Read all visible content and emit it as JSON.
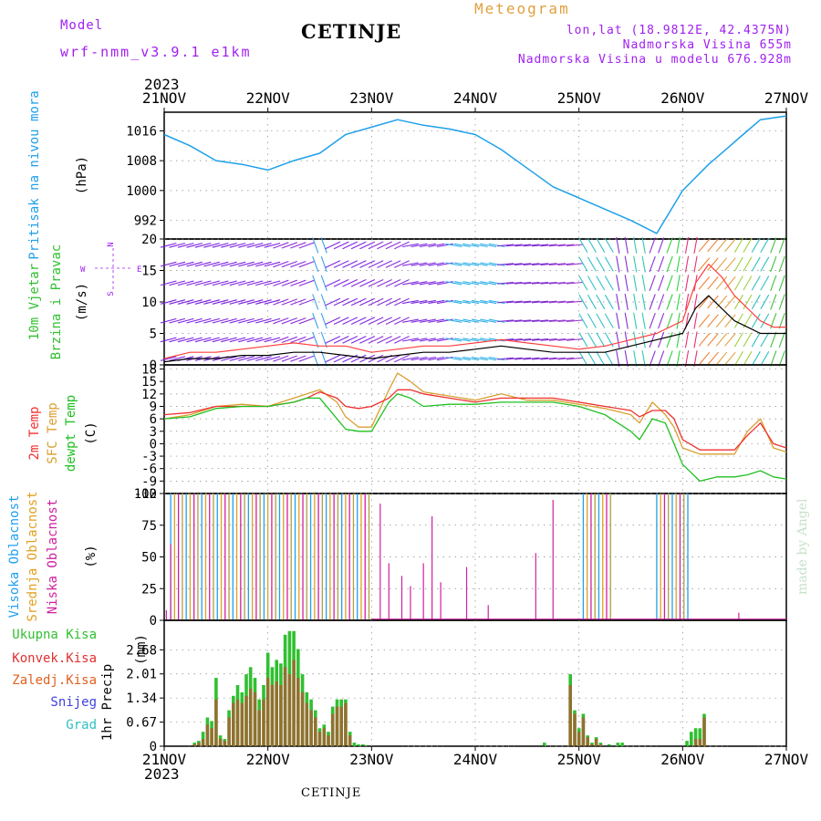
{
  "header": {
    "title": "CETINJE",
    "model_label": "Model",
    "model_name": "wrf-nmm_v3.9.1  e1km",
    "meteogram": "Meteogram",
    "lonlat": "lon,lat (18.9812E, 42.4375N)",
    "altitude": "Nadmorska Visina 655m",
    "model_altitude": "Nadmorska Visina u modelu 676.928m",
    "made_by": "made by Angel",
    "footer": "CETINJE"
  },
  "time_axis": {
    "year": "2023",
    "labels": [
      "21NOV",
      "22NOV",
      "23NOV",
      "24NOV",
      "25NOV",
      "26NOV",
      "27NOV"
    ],
    "range_hours": [
      0,
      144
    ]
  },
  "colors": {
    "pressure": "#1ea0ea",
    "temp2m": "#f03030",
    "sfc_temp": "#d8a030",
    "dewpoint": "#20c020",
    "wind_speed": "#000000",
    "gust": "#ff4040",
    "high_cloud": "#20a0f0",
    "mid_cloud": "#e0a020",
    "low_cloud": "#d020a0",
    "total_precip": "#30c030",
    "convective": "#e03030",
    "frozen": "#e06020",
    "snow": "#4040e0",
    "graupel": "#30c0c0",
    "wind_label": "#30c030",
    "axis_label": "#000000"
  },
  "chart_data": [
    {
      "type": "line",
      "id": "pressure",
      "ylabel_title": "Pritisak na nivou mora",
      "ylabel_unit": "(hPa)",
      "ylim": [
        987,
        1021
      ],
      "yticks": [
        "1016",
        "1008",
        "1000",
        "992"
      ],
      "ytick_values": [
        1016,
        1008,
        1000,
        992
      ],
      "series": [
        {
          "x": [
            0,
            6,
            12,
            18,
            24,
            30,
            36,
            42,
            48,
            54,
            60,
            66,
            72,
            78,
            84,
            90,
            96,
            102,
            108,
            114,
            120,
            126,
            130,
            134,
            138,
            144
          ],
          "values": [
            1015,
            1012,
            1008,
            1007,
            1005.5,
            1008,
            1010,
            1015,
            1017,
            1019,
            1017.5,
            1016.5,
            1015,
            1011,
            1006,
            1001,
            998,
            995,
            992,
            988.5,
            1000,
            1007,
            1011,
            1015,
            1019,
            1020
          ]
        }
      ]
    },
    {
      "type": "wind",
      "id": "wind",
      "ylabel_title_1": "10m Vjetar",
      "ylabel_title_2": "Brzina i Pravac",
      "ylabel_unit": "(m/s)",
      "compass": "N",
      "compass_w": "W",
      "compass_e": "E",
      "compass_s": "S",
      "ylim": [
        0,
        20
      ],
      "yticks": [
        "20",
        "15",
        "10",
        "5",
        "0"
      ],
      "ytick_values": [
        20,
        15,
        10,
        5,
        0
      ],
      "speed": {
        "x": [
          0,
          6,
          12,
          18,
          24,
          30,
          36,
          42,
          48,
          54,
          60,
          66,
          72,
          78,
          84,
          90,
          96,
          102,
          108,
          114,
          120,
          123,
          126,
          129,
          132,
          135,
          138,
          141,
          144
        ],
        "values": [
          0.5,
          1,
          1,
          1.5,
          1.5,
          2,
          2,
          1.5,
          1,
          1.5,
          2,
          2,
          2.5,
          3,
          2.5,
          2,
          2,
          2,
          3,
          4,
          5,
          9,
          11,
          9,
          7,
          6,
          5,
          5,
          5
        ]
      },
      "gust": {
        "x": [
          0,
          6,
          12,
          18,
          24,
          30,
          36,
          42,
          48,
          54,
          60,
          66,
          72,
          78,
          84,
          90,
          96,
          102,
          108,
          114,
          120,
          123,
          126,
          129,
          132,
          135,
          138,
          141,
          144
        ],
        "values": [
          1,
          2,
          2,
          2.5,
          3,
          3.5,
          3,
          3,
          2,
          2.5,
          3,
          3,
          3.5,
          4,
          3.5,
          3,
          2.5,
          3,
          4,
          5,
          7,
          13,
          16,
          14,
          11,
          9,
          7,
          6,
          6
        ]
      }
    },
    {
      "type": "line",
      "id": "temperature",
      "ylabel_title_1": "2m Temp",
      "ylabel_title_2": "SFC Temp",
      "ylabel_title_3": "dewpt Temp",
      "ylabel_unit": "(C)",
      "ylim": [
        -12,
        19
      ],
      "yticks": [
        "18",
        "15",
        "12",
        "9",
        "6",
        "3",
        "0",
        "-3",
        "-6",
        "-9",
        "-12"
      ],
      "ytick_values": [
        18,
        15,
        12,
        9,
        6,
        3,
        0,
        -3,
        -6,
        -9,
        -12
      ],
      "series": [
        {
          "name": "2m Temp",
          "x": [
            0,
            6,
            12,
            18,
            24,
            30,
            33,
            36,
            40,
            42,
            45,
            48,
            52,
            54,
            57,
            60,
            66,
            72,
            78,
            84,
            90,
            96,
            102,
            108,
            110,
            113,
            116,
            118,
            120,
            124,
            128,
            132,
            135,
            138,
            141,
            144
          ],
          "values": [
            7,
            7.5,
            9,
            9,
            9,
            10,
            11,
            12.5,
            11,
            9,
            8.5,
            9,
            11,
            13,
            13,
            12,
            11,
            10,
            11,
            11,
            11,
            10,
            9,
            8,
            6.5,
            8,
            8,
            6,
            1,
            -1.5,
            -1.5,
            -1.5,
            2,
            5,
            0,
            -1
          ]
        },
        {
          "name": "SFC Temp",
          "x": [
            0,
            6,
            12,
            18,
            24,
            30,
            33,
            36,
            40,
            42,
            45,
            48,
            52,
            54,
            57,
            60,
            66,
            72,
            78,
            84,
            90,
            96,
            102,
            108,
            110,
            113,
            116,
            118,
            120,
            124,
            128,
            132,
            135,
            138,
            141,
            144
          ],
          "values": [
            6,
            7,
            9,
            9.5,
            9,
            11,
            12,
            13,
            10,
            6.5,
            4,
            4,
            13,
            17,
            15,
            12.5,
            11.5,
            10.5,
            12,
            10.5,
            10.5,
            9.5,
            8.5,
            7,
            5,
            10,
            7,
            4,
            -1,
            -2.5,
            -2.5,
            -2.5,
            3,
            6,
            -1,
            -2
          ]
        },
        {
          "name": "dewpt Temp",
          "x": [
            0,
            6,
            12,
            18,
            24,
            30,
            33,
            36,
            40,
            42,
            45,
            48,
            52,
            54,
            57,
            60,
            66,
            72,
            78,
            84,
            90,
            96,
            102,
            108,
            110,
            113,
            116,
            118,
            120,
            124,
            128,
            132,
            135,
            138,
            141,
            144
          ],
          "values": [
            6,
            6.5,
            8.5,
            9,
            9,
            10,
            11,
            11,
            6,
            3.5,
            3,
            3,
            10,
            12,
            11,
            9,
            9.5,
            9.5,
            10,
            10,
            10,
            9,
            7,
            3,
            1,
            6,
            5,
            0,
            -5,
            -9,
            -8,
            -8,
            -7.5,
            -6.5,
            -8,
            -8.5
          ]
        }
      ]
    },
    {
      "type": "bar",
      "id": "clouds",
      "ylabel_title_1": "Visoka Oblacnost",
      "ylabel_title_2": "Srednja Oblacnost",
      "ylabel_title_3": "Niska Oblacnost",
      "ylabel_unit": "(%)",
      "ylim": [
        0,
        100
      ],
      "yticks": [
        "100",
        "75",
        "50",
        "25",
        "0"
      ],
      "ytick_values": [
        100,
        75,
        50,
        25,
        0
      ],
      "blocks": [
        {
          "start": 1.5,
          "end": 48,
          "value": 100
        },
        {
          "start": 97,
          "end": 104,
          "value": 100
        },
        {
          "start": 114,
          "end": 122,
          "value": 100
        }
      ],
      "low_spikes": {
        "x": [
          0.5,
          1.5,
          50,
          52,
          55,
          57,
          60,
          62,
          64,
          70,
          75,
          86,
          90,
          133
        ],
        "values": [
          8,
          60,
          92,
          45,
          35,
          27,
          45,
          82,
          30,
          42,
          12,
          53,
          95,
          6
        ]
      }
    },
    {
      "type": "bar",
      "id": "precip",
      "ylabel_title": "1hr Precip",
      "ylabel_unit": "(mm)",
      "legend": [
        "Ukupna Kisa",
        "Konvek.Kisa",
        "Zaledj.Kisa",
        "Snijeg",
        "Grad"
      ],
      "ylim": [
        0,
        3.5
      ],
      "yticks": [
        "2.68",
        "2.01",
        "1.34",
        "0.67",
        "0"
      ],
      "ytick_values": [
        2.68,
        2.01,
        1.34,
        0.67,
        0
      ],
      "total": {
        "x": [
          7,
          8,
          9,
          10,
          11,
          12,
          13,
          14,
          15,
          16,
          17,
          18,
          19,
          20,
          21,
          22,
          23,
          24,
          25,
          26,
          27,
          28,
          29,
          30,
          31,
          32,
          33,
          34,
          35,
          36,
          37,
          38,
          39,
          40,
          41,
          42,
          43,
          44,
          45,
          46,
          47,
          88,
          94,
          95,
          96,
          97,
          98,
          99,
          100,
          101,
          103,
          105,
          106,
          121,
          122,
          123,
          124,
          125
        ],
        "values": [
          0.1,
          0.15,
          0.4,
          0.8,
          0.7,
          1.9,
          0.3,
          0.2,
          1.0,
          1.4,
          1.7,
          1.5,
          2.0,
          2.2,
          1.9,
          1.3,
          1.7,
          2.6,
          2.2,
          2.4,
          2.3,
          3.1,
          3.2,
          3.2,
          2.7,
          2.0,
          1.5,
          1.3,
          1.0,
          0.5,
          0.6,
          0.4,
          1.1,
          1.3,
          1.3,
          1.3,
          0.4,
          0.1,
          0.05,
          0.05,
          0.02,
          0.1,
          2.0,
          1.0,
          0.5,
          0.9,
          0.3,
          0.1,
          0.25,
          0.1,
          0.05,
          0.1,
          0.1,
          0.15,
          0.4,
          0.5,
          0.5,
          0.9
        ]
      },
      "convective": {
        "x": [
          7,
          8,
          9,
          10,
          11,
          12,
          13,
          14,
          15,
          16,
          17,
          18,
          19,
          20,
          21,
          22,
          23,
          24,
          25,
          26,
          27,
          28,
          29,
          30,
          31,
          32,
          33,
          34,
          35,
          36,
          37,
          38,
          39,
          40,
          41,
          42,
          43,
          94,
          95,
          96,
          97,
          98,
          99,
          100,
          101,
          123,
          124,
          125
        ],
        "values": [
          0.05,
          0.1,
          0.2,
          0.6,
          0.5,
          1.3,
          0.2,
          0.15,
          0.8,
          1.2,
          1.3,
          1.2,
          1.4,
          1.6,
          1.5,
          1.0,
          1.3,
          1.9,
          1.7,
          1.8,
          1.7,
          2.2,
          2.0,
          2.4,
          1.9,
          1.5,
          1.2,
          1.0,
          0.8,
          0.4,
          0.5,
          0.3,
          0.9,
          1.1,
          1.1,
          1.2,
          0.3,
          1.7,
          0.9,
          0.4,
          0.8,
          0.25,
          0.05,
          0.2,
          0.05,
          0.2,
          0.2,
          0.8
        ]
      }
    }
  ]
}
